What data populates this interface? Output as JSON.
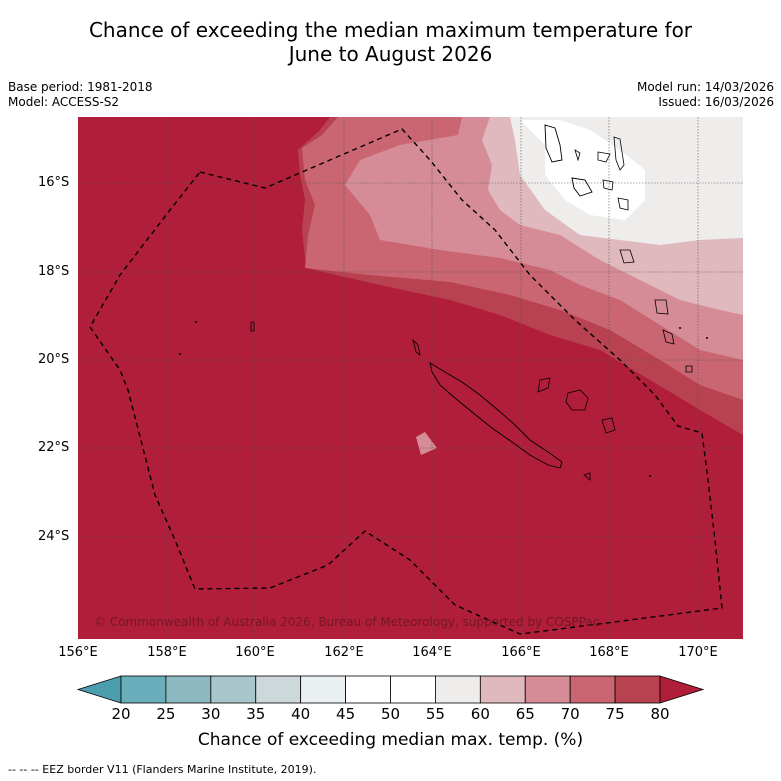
{
  "title_line1": "Chance of exceeding the median maximum temperature for",
  "title_line2": "June to August 2026",
  "base_period": "Base period: 1981-2018",
  "model": "Model: ACCESS-S2",
  "model_run": "Model run: 14/03/2026",
  "issued": "Issued: 16/03/2026",
  "lat_labels": [
    "16°S",
    "18°S",
    "20°S",
    "22°S",
    "24°S"
  ],
  "lon_labels": [
    "156°E",
    "158°E",
    "160°E",
    "162°E",
    "164°E",
    "166°E",
    "168°E",
    "170°E"
  ],
  "copyright": "© Commonwealth of Australia 2026, Bureau of Meteorology, supported by COSPPac",
  "colorbar": {
    "ticks": [
      "20",
      "25",
      "30",
      "35",
      "40",
      "45",
      "50",
      "55",
      "60",
      "65",
      "70",
      "75",
      "80"
    ],
    "colors": [
      "#4a9eae",
      "#6aaebb",
      "#8cb8c2",
      "#a9c6cb",
      "#cdd8db",
      "#eaf0f2",
      "#ffffff",
      "#ffffff",
      "#eeedec",
      "#e0b9bf",
      "#d58c96",
      "#c96672",
      "#b8424f",
      "#b01e3a"
    ],
    "title": "Chance of exceeding median max. temp. (%)"
  },
  "legend_note": "--  --  -- EEZ border V11 (Flanders Marine Institute, 2019)."
}
